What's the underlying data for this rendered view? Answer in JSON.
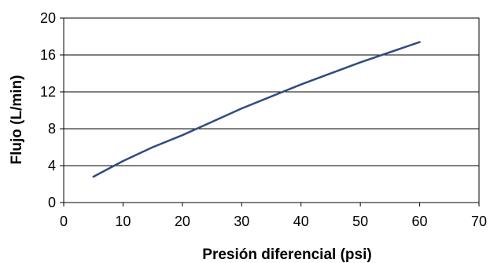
{
  "chart_data": {
    "type": "line",
    "title": "",
    "xlabel": "Presión diferencial (psi)",
    "ylabel": "Flujo (L/min)",
    "xlim": [
      0,
      70
    ],
    "ylim": [
      0,
      20
    ],
    "x_ticks": [
      0,
      10,
      20,
      30,
      40,
      50,
      60,
      70
    ],
    "y_ticks": [
      0,
      4,
      8,
      12,
      16,
      20
    ],
    "grid": "horizontal",
    "legend": "none",
    "series": [
      {
        "color": "#2e4d7f",
        "x": [
          5,
          10,
          15,
          20,
          30,
          40,
          50,
          60
        ],
        "y": [
          2.8,
          4.5,
          6.0,
          7.3,
          10.2,
          12.8,
          15.2,
          17.4
        ]
      }
    ]
  }
}
